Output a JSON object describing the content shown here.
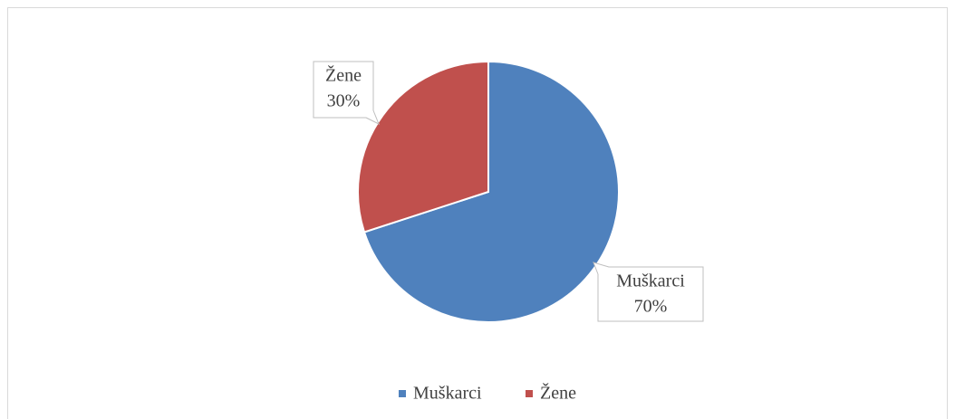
{
  "chart_data": {
    "type": "pie",
    "categories": [
      "Muškarci",
      "Žene"
    ],
    "values": [
      70,
      30
    ],
    "value_labels": [
      "70%",
      "30%"
    ],
    "colors": [
      "#4f81bd",
      "#c0504d"
    ],
    "legend": "bottom"
  }
}
